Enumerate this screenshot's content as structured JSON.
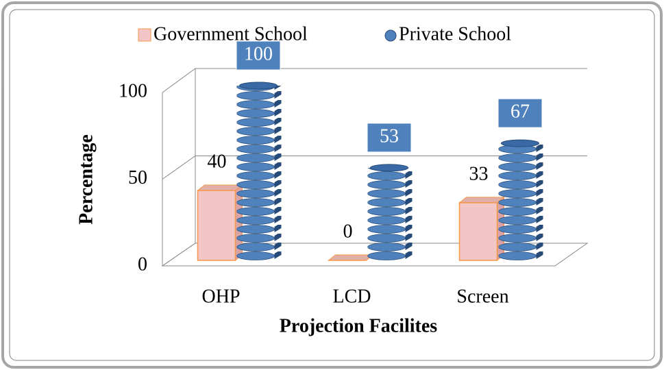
{
  "chart_data": {
    "type": "bar3d",
    "categories": [
      "OHP",
      "LCD",
      "Screen"
    ],
    "series": [
      {
        "name": "Government School",
        "color": "#f2c6c6",
        "edge": "#f79646",
        "values": [
          40,
          0,
          33
        ]
      },
      {
        "name": "Private School",
        "color": "#4f81bd",
        "edge": "#264b78",
        "values": [
          100,
          53,
          67
        ]
      }
    ],
    "ylim": [
      0,
      100
    ],
    "yticks": [
      0,
      50,
      100
    ],
    "grid": true,
    "xlabel": "Projection Facilites",
    "ylabel": "Percentage",
    "legend": "top"
  }
}
